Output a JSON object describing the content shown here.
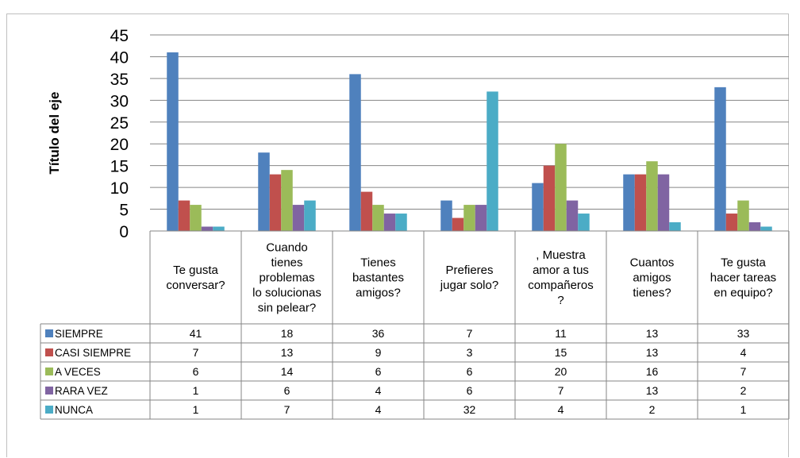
{
  "chart_data": {
    "type": "bar",
    "title": "",
    "ylabel": "Título del eje",
    "xlabel": "",
    "ylim": [
      0,
      45
    ],
    "yticks": [
      0,
      5,
      10,
      15,
      20,
      25,
      30,
      35,
      40,
      45
    ],
    "grid": true,
    "legend": "data-table",
    "categories": [
      [
        "Te gusta",
        "conversar?"
      ],
      [
        "Cuando",
        "tienes",
        "problemas",
        "lo solucionas",
        "sin pelear?"
      ],
      [
        "Tienes",
        "bastantes",
        "amigos?"
      ],
      [
        "Prefieres",
        "jugar solo?"
      ],
      [
        ", Muestra",
        "amor a tus",
        "compañeros",
        "?"
      ],
      [
        "Cuantos",
        "amigos",
        "tienes?"
      ],
      [
        "Te gusta",
        "hacer tareas",
        "en equipo?"
      ]
    ],
    "series": [
      {
        "name": "SIEMPRE",
        "color": "#4f81bd",
        "values": [
          41,
          18,
          36,
          7,
          11,
          13,
          33
        ]
      },
      {
        "name": "CASI SIEMPRE",
        "color": "#c0504d",
        "values": [
          7,
          13,
          9,
          3,
          15,
          13,
          4
        ]
      },
      {
        "name": "A VECES",
        "color": "#9bbb59",
        "values": [
          6,
          14,
          6,
          6,
          20,
          16,
          7
        ]
      },
      {
        "name": "RARA VEZ",
        "color": "#8064a2",
        "values": [
          1,
          6,
          4,
          6,
          7,
          13,
          2
        ]
      },
      {
        "name": "NUNCA",
        "color": "#4bacc6",
        "values": [
          1,
          7,
          4,
          32,
          4,
          2,
          1
        ]
      }
    ]
  }
}
